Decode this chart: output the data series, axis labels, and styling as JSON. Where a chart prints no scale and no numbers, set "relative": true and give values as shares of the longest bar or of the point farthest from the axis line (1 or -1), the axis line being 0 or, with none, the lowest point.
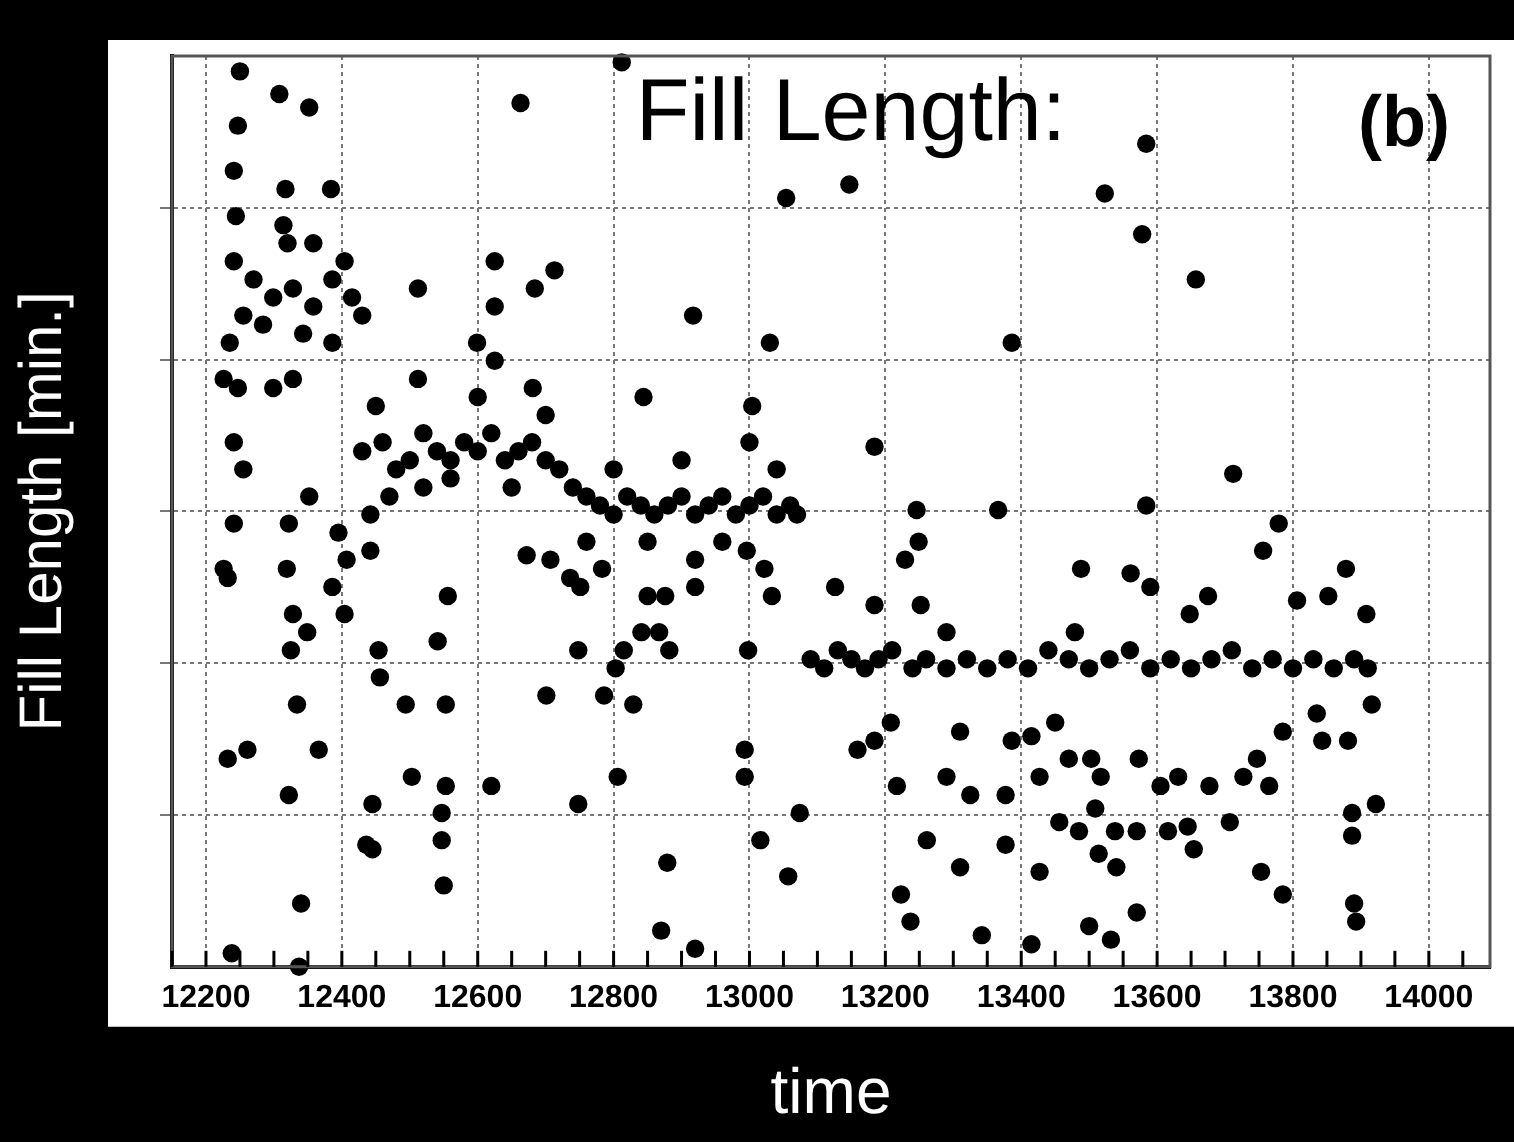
{
  "chart_data": {
    "type": "scatter",
    "title": "Fill Length:",
    "xlabel": "time",
    "ylabel": "Fill Length [min.]",
    "annotations": [
      "(b)"
    ],
    "relative": true,
    "grid": true,
    "legend": false,
    "marker": "circle",
    "xlim": [
      12150,
      14090
    ],
    "xticks": [
      12200,
      12400,
      12600,
      12800,
      13000,
      13200,
      13400,
      13600,
      13800,
      14000
    ],
    "series": [
      {
        "color": "#000000",
        "x": [
          12250,
          12308,
          12352,
          12247,
          12241,
          12244,
          12317,
          12384,
          12314,
          12358,
          12320,
          12241,
          12270,
          12299,
          12328,
          12358,
          12386,
          12415,
          12430,
          12255,
          12284,
          12343,
          12386,
          12235,
          12226,
          12247,
          12299,
          12328,
          12404,
          12226,
          12241,
          12255,
          12241,
          12232,
          12322,
          12352,
          12319,
          12328,
          12349,
          12325,
          12334,
          12232,
          12261,
          12322,
          12366,
          12340,
          12238,
          12337,
          12395,
          12386,
          12404,
          12407,
          12442,
          12442,
          12454,
          12456,
          12494,
          12553,
          12503,
          12445,
          12553,
          12547,
          12547,
          12550,
          12436,
          12445,
          12541,
          12556,
          12620,
          12430,
          12460,
          12480,
          12500,
          12520,
          12540,
          12560,
          12580,
          12600,
          12620,
          12640,
          12660,
          12680,
          12700,
          12720,
          12740,
          12760,
          12780,
          12800,
          12820,
          12840,
          12860,
          12880,
          12900,
          12920,
          12940,
          12960,
          12980,
          13000,
          13020,
          13040,
          13060,
          13070,
          12450,
          12520,
          12600,
          12650,
          12700,
          12760,
          12800,
          12850,
          12900,
          12960,
          13000,
          13040,
          12470,
          12560,
          12512,
          12625,
          12684,
          12713,
          12625,
          12599,
          12625,
          12512,
          12681,
          12844,
          12917,
          12812,
          12663,
          13054,
          13030,
          13004,
          12672,
          12707,
          12736,
          12751,
          12783,
          12748,
          12815,
          12803,
          12701,
          12786,
          12829,
          12850,
          12876,
          12841,
          12867,
          12882,
          12920,
          12920,
          12806,
          12748,
          12879,
          12870,
          12920,
          12996,
          13022,
          13033,
          12998,
          12993,
          12993,
          13016,
          13057,
          13074,
          13090,
          13110,
          13130,
          13150,
          13170,
          13190,
          13210,
          13240,
          13260,
          13290,
          13320,
          13350,
          13380,
          13410,
          13440,
          13470,
          13500,
          13530,
          13560,
          13590,
          13620,
          13650,
          13680,
          13710,
          13740,
          13770,
          13800,
          13830,
          13860,
          13890,
          13910,
          13246,
          13366,
          13584,
          13712,
          13779,
          13756,
          13249,
          13229,
          13488,
          13561,
          13878,
          13126,
          13184,
          13590,
          13675,
          13806,
          13852,
          13908,
          13252,
          13290,
          13479,
          13648,
          13159,
          13184,
          13208,
          13217,
          13290,
          13325,
          13310,
          13377,
          13386,
          13415,
          13427,
          13450,
          13470,
          13503,
          13517,
          13456,
          13485,
          13509,
          13538,
          13570,
          13573,
          13616,
          13605,
          13631,
          13645,
          13654,
          13677,
          13707,
          13727,
          13747,
          13765,
          13785,
          13843,
          13881,
          13835,
          13916,
          13922,
          13887,
          13887,
          13261,
          13310,
          13377,
          13427,
          13514,
          13540,
          13753,
          13223,
          13237,
          13342,
          13415,
          13500,
          13532,
          13570,
          13785,
          13890,
          13893,
          13147,
          13523,
          13578,
          13584,
          13657,
          13386,
          13184
        ],
        "values": [
          0.99,
          0.965,
          0.95,
          0.93,
          0.88,
          0.83,
          0.86,
          0.86,
          0.82,
          0.8,
          0.8,
          0.78,
          0.76,
          0.74,
          0.75,
          0.73,
          0.76,
          0.74,
          0.72,
          0.72,
          0.71,
          0.7,
          0.69,
          0.69,
          0.65,
          0.64,
          0.64,
          0.65,
          0.78,
          0.44,
          0.49,
          0.55,
          0.58,
          0.43,
          0.49,
          0.52,
          0.44,
          0.39,
          0.37,
          0.35,
          0.29,
          0.23,
          0.24,
          0.19,
          0.24,
          0.07,
          0.015,
          0,
          0.48,
          0.42,
          0.39,
          0.45,
          0.5,
          0.46,
          0.35,
          0.32,
          0.29,
          0.29,
          0.21,
          0.18,
          0.2,
          0.17,
          0.14,
          0.09,
          0.135,
          0.13,
          0.36,
          0.41,
          0.2,
          0.57,
          0.58,
          0.55,
          0.56,
          0.59,
          0.57,
          0.56,
          0.58,
          0.57,
          0.59,
          0.56,
          0.57,
          0.58,
          0.56,
          0.55,
          0.53,
          0.52,
          0.51,
          0.5,
          0.52,
          0.51,
          0.5,
          0.51,
          0.52,
          0.5,
          0.51,
          0.52,
          0.5,
          0.51,
          0.52,
          0.5,
          0.51,
          0.5,
          0.62,
          0.53,
          0.63,
          0.53,
          0.61,
          0.47,
          0.55,
          0.47,
          0.56,
          0.47,
          0.58,
          0.55,
          0.52,
          0.54,
          0.75,
          0.78,
          0.75,
          0.77,
          0.73,
          0.69,
          0.67,
          0.65,
          0.64,
          0.63,
          0.72,
          1,
          0.955,
          0.85,
          0.69,
          0.62,
          0.455,
          0.45,
          0.43,
          0.42,
          0.44,
          0.35,
          0.35,
          0.33,
          0.3,
          0.3,
          0.29,
          0.41,
          0.41,
          0.37,
          0.37,
          0.35,
          0.42,
          0.45,
          0.21,
          0.18,
          0.115,
          0.04,
          0.02,
          0.46,
          0.44,
          0.41,
          0.35,
          0.24,
          0.21,
          0.14,
          0.1,
          0.17,
          0.34,
          0.33,
          0.35,
          0.34,
          0.33,
          0.34,
          0.35,
          0.33,
          0.34,
          0.33,
          0.34,
          0.33,
          0.34,
          0.33,
          0.35,
          0.34,
          0.33,
          0.34,
          0.35,
          0.33,
          0.34,
          0.33,
          0.34,
          0.35,
          0.33,
          0.34,
          0.33,
          0.34,
          0.33,
          0.34,
          0.33,
          0.505,
          0.505,
          0.51,
          0.545,
          0.49,
          0.46,
          0.47,
          0.45,
          0.44,
          0.435,
          0.44,
          0.42,
          0.4,
          0.42,
          0.41,
          0.405,
          0.41,
          0.39,
          0.4,
          0.37,
          0.37,
          0.39,
          0.24,
          0.25,
          0.27,
          0.2,
          0.21,
          0.19,
          0.26,
          0.19,
          0.25,
          0.255,
          0.21,
          0.27,
          0.23,
          0.23,
          0.21,
          0.16,
          0.15,
          0.175,
          0.15,
          0.15,
          0.23,
          0.15,
          0.2,
          0.21,
          0.155,
          0.13,
          0.2,
          0.16,
          0.21,
          0.23,
          0.2,
          0.26,
          0.25,
          0.25,
          0.28,
          0.29,
          0.18,
          0.17,
          0.145,
          0.14,
          0.11,
          0.135,
          0.105,
          0.125,
          0.11,
          0.105,
          0.08,
          0.05,
          0.035,
          0.025,
          0.045,
          0.03,
          0.06,
          0.08,
          0.07,
          0.05,
          0.865,
          0.855,
          0.81,
          0.91,
          0.76,
          0.69,
          0.575
        ]
      }
    ]
  }
}
